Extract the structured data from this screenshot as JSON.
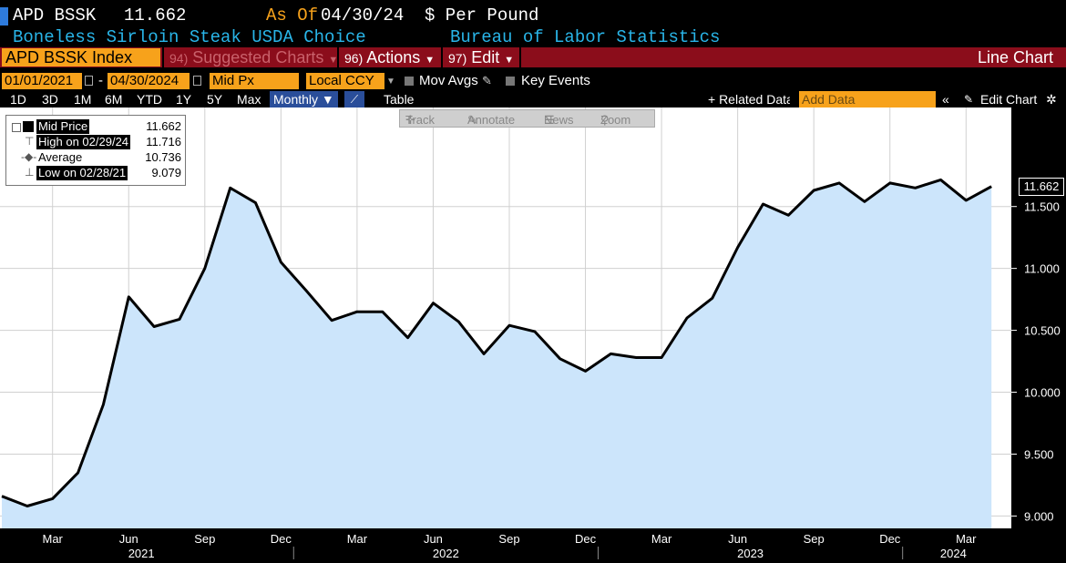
{
  "header": {
    "ticker": "APD BSSK",
    "last": "11.662",
    "asof_label": "As Of",
    "asof_date": "04/30/24",
    "unit": "$ Per Pound",
    "name": "Boneless Sirloin Steak USDA Choice",
    "source": "Bureau of Labor Statistics"
  },
  "menu": {
    "security": "APD BSSK Index",
    "suggested_num": "94)",
    "suggested": "Suggested Charts",
    "actions_num": "96)",
    "actions": "Actions",
    "edit_num": "97)",
    "edit": "Edit",
    "chart_type": "Line Chart"
  },
  "controls": {
    "start_date": "01/01/2021",
    "dash": "-",
    "end_date": "04/30/2024",
    "field": "Mid Px",
    "currency": "Local CCY",
    "mov_avgs": "Mov Avgs",
    "key_events": "Key Events"
  },
  "periods": [
    "1D",
    "3D",
    "1M",
    "6M",
    "YTD",
    "1Y",
    "5Y",
    "Max"
  ],
  "frequency": "Monthly ▼",
  "table_label": "Table",
  "related": "+ Related Data",
  "add_data_placeholder": "Add Data",
  "edit_chart": "Edit Chart",
  "tools": [
    "Track",
    "Annotate",
    "News",
    "Zoom"
  ],
  "legend": {
    "mid": {
      "label": "Mid Price",
      "value": "11.662"
    },
    "high": {
      "label": "High on 02/29/24",
      "value": "11.716"
    },
    "avg": {
      "label": "Average",
      "value": "10.736"
    },
    "low": {
      "label": "Low on 02/28/21",
      "value": "9.079"
    }
  },
  "last_label": "11.662",
  "colors": {
    "accent": "#f7a21b",
    "menu_bar": "#8b0d1b",
    "line": "#000000",
    "area": "#cce5fb",
    "header_blue": "#29b5e8"
  },
  "chart_data": {
    "type": "area",
    "title": "",
    "xlabel": "",
    "ylabel": "",
    "ylim": [
      8.9,
      12.3
    ],
    "yticks": [
      "9.000",
      "9.500",
      "10.000",
      "10.500",
      "11.000",
      "11.500"
    ],
    "x_month_labels": [
      "Mar",
      "Jun",
      "Sep",
      "Dec",
      "Mar",
      "Jun",
      "Sep",
      "Dec",
      "Mar",
      "Jun",
      "Sep",
      "Dec",
      "Mar"
    ],
    "x_year_labels": [
      "2021",
      "2022",
      "2023",
      "2024"
    ],
    "x": [
      "2021-01",
      "2021-02",
      "2021-03",
      "2021-04",
      "2021-05",
      "2021-06",
      "2021-07",
      "2021-08",
      "2021-09",
      "2021-10",
      "2021-11",
      "2021-12",
      "2022-01",
      "2022-02",
      "2022-03",
      "2022-04",
      "2022-05",
      "2022-06",
      "2022-07",
      "2022-08",
      "2022-09",
      "2022-10",
      "2022-11",
      "2022-12",
      "2023-01",
      "2023-02",
      "2023-03",
      "2023-04",
      "2023-05",
      "2023-06",
      "2023-07",
      "2023-08",
      "2023-09",
      "2023-10",
      "2023-11",
      "2023-12",
      "2024-01",
      "2024-02",
      "2024-03",
      "2024-04"
    ],
    "series": [
      {
        "name": "Mid Price",
        "values": [
          9.16,
          9.08,
          9.14,
          9.35,
          9.9,
          10.77,
          10.53,
          10.59,
          11.0,
          11.65,
          11.53,
          11.05,
          10.82,
          10.58,
          10.65,
          10.65,
          10.44,
          10.72,
          10.57,
          10.31,
          10.54,
          10.49,
          10.27,
          10.17,
          10.31,
          10.28,
          10.28,
          10.6,
          10.76,
          11.17,
          11.52,
          11.43,
          11.63,
          11.69,
          11.54,
          11.69,
          11.65,
          11.716,
          11.55,
          11.662
        ]
      }
    ]
  }
}
